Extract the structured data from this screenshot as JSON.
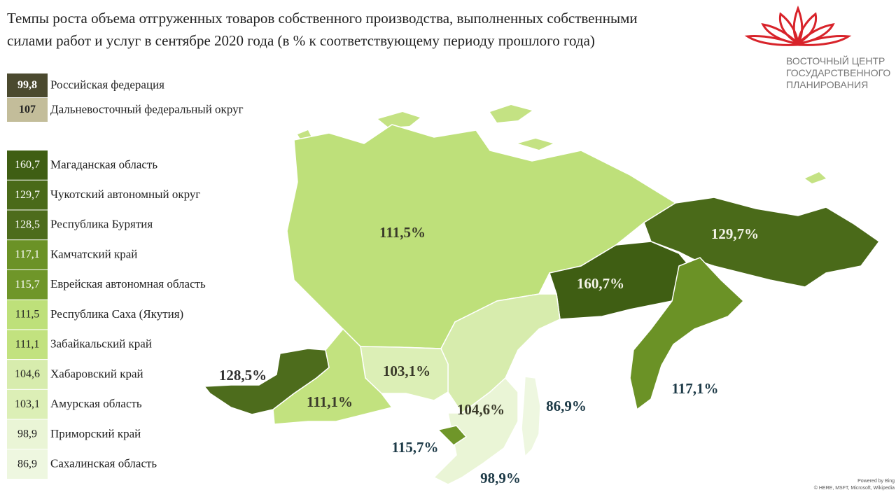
{
  "header": {
    "title_line1": "Темпы роста объема отгруженных товаров собственного производства, выполненных собственными",
    "title_line2": "силами работ и услуг в сентябре 2020 года (в % к соответствующему периоду прошлого года)"
  },
  "logo": {
    "line1": "ВОСТОЧНЫЙ ЦЕНТР",
    "line2": "ГОСУДАРСТВЕННОГО",
    "line3": "ПЛАНИРОВАНИЯ"
  },
  "summary": [
    {
      "value": "99,8",
      "name": "Российская федерация",
      "color": "#4b4a2f"
    },
    {
      "value": "107",
      "name": "Дальневосточный федеральный округ",
      "color": "#c3bd9a"
    }
  ],
  "regions": [
    {
      "value": "160,7",
      "name": "Магаданская область",
      "color": "#3f5e13",
      "map_label": "160,7%"
    },
    {
      "value": "129,7",
      "name": "Чукотский автономный округ",
      "color": "#4a6a19",
      "map_label": "129,7%"
    },
    {
      "value": "128,5",
      "name": "Республика Бурятия",
      "color": "#4d6c1c",
      "map_label": "128,5%"
    },
    {
      "value": "117,1",
      "name": "Камчатский край",
      "color": "#6b9226",
      "map_label": "117,1%"
    },
    {
      "value": "115,7",
      "name": "Еврейская автономная область",
      "color": "#6f9629",
      "map_label": "115,7%"
    },
    {
      "value": "111,5",
      "name": "Республика Саха (Якутия)",
      "color": "#bee07a",
      "map_label": "111,5%"
    },
    {
      "value": "111,1",
      "name": "Забайкальский край",
      "color": "#c2e27f",
      "map_label": "111,1%"
    },
    {
      "value": "104,6",
      "name": "Хабаровский край",
      "color": "#d7ecad",
      "map_label": "104,6%"
    },
    {
      "value": "103,1",
      "name": "Амурская область",
      "color": "#dcefb6",
      "map_label": "103,1%"
    },
    {
      "value": "98,9",
      "name": "Приморский край",
      "color": "#eaf5d6",
      "map_label": "98,9%"
    },
    {
      "value": "86,9",
      "name": "Сахалинская область",
      "color": "#eef7e0",
      "map_label": "86,9%"
    }
  ],
  "credits": {
    "line1": "Powered by Bing",
    "line2": "© HERE, MSFT, Microsoft, Wikipedia"
  }
}
